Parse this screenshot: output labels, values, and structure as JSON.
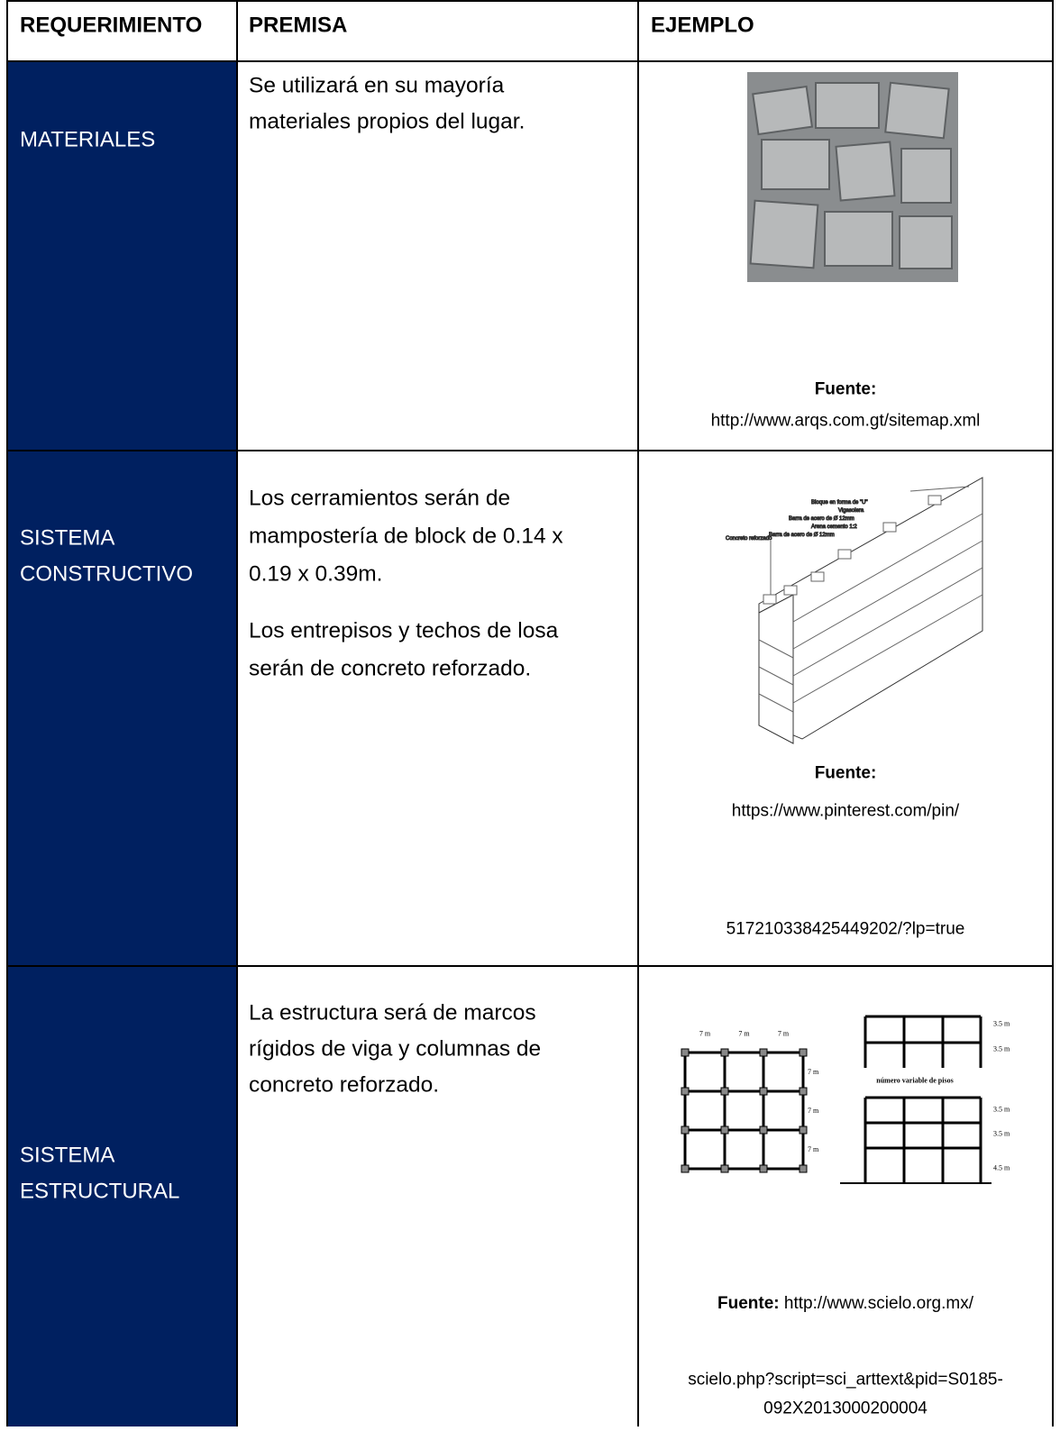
{
  "table": {
    "headers": [
      "REQUERIMIENTO",
      "PREMISA",
      "EJEMPLO"
    ],
    "rows": [
      {
        "requirement": [
          "MATERIALES"
        ],
        "premise": [
          [
            "Se utilizará en su mayoría",
            "materiales propios del lugar."
          ]
        ],
        "source_label": "Fuente:",
        "source": [
          "http://www.arqs.com.gt/sitemap.xml"
        ]
      },
      {
        "requirement": [
          "SISTEMA",
          "CONSTRUCTIVO"
        ],
        "premise": [
          [
            "Los cerramientos serán de",
            "mampostería de block de 0.14 x",
            "0.19 x 0.39m."
          ],
          [
            "Los entrepisos y techos de losa",
            "serán de concreto reforzado."
          ]
        ],
        "source_label": "Fuente:",
        "source": [
          "https://www.pinterest.com/pin/",
          "517210338425449202/?lp=true"
        ]
      },
      {
        "requirement": [
          "SISTEMA",
          "ESTRUCTURAL"
        ],
        "premise": [
          [
            "La estructura será de marcos",
            "rígidos de viga y columnas de",
            "concreto reforzado."
          ]
        ],
        "source_label": "Fuente:",
        "source": [
          "http://www.scielo.org.mx/",
          "scielo.php?script=sci_arttext&pid=S0185-",
          "092X2013000200004"
        ]
      }
    ]
  },
  "figures": {
    "block_labels": [
      "Bloque en forma de \"U\"",
      "Vigasolera",
      "Barra de acero de Ø 12mm",
      "Arena cemento 1:2",
      "Concreto reforzado",
      "Barra de acero de Ø 12mm"
    ],
    "plan_labels": [
      "7 m",
      "7 m",
      "7 m",
      "7 m",
      "7 m",
      "7 m"
    ],
    "elevation_labels": [
      "3.5 m",
      "3.5 m",
      "número variable de pisos",
      "3.5 m",
      "3.5 m",
      "4.5 m"
    ]
  }
}
